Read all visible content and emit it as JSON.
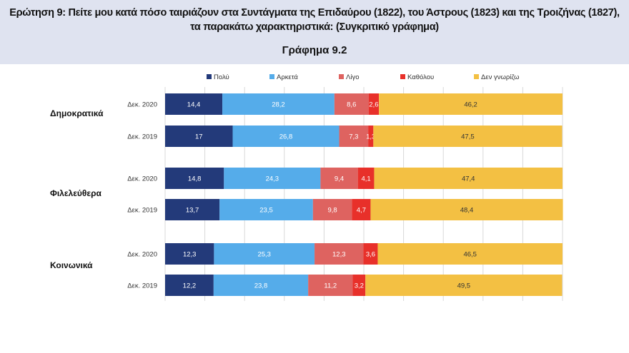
{
  "header": {
    "title": "Ερώτηση 9: Πείτε μου κατά πόσο ταιριάζουν στα Συντάγματα της Επιδαύρου (1822), του Άστρους (1823) και της Τροιζήνας (1827), τα παρακάτω χαρακτηριστικά: (Συγκριτικό γράφημα)",
    "subtitle": "Γράφημα 9.2"
  },
  "chart_data": {
    "type": "bar",
    "orientation": "horizontal",
    "stacked": true,
    "xlim": [
      0,
      100
    ],
    "grid": true,
    "legend_position": "top",
    "groups": [
      "Δημοκρατικά",
      "Φιλελεύθερα",
      "Κοινωνικά"
    ],
    "categories": [
      "Δεκ. 2020",
      "Δεκ. 2019"
    ],
    "series": [
      {
        "name": "Πολύ",
        "color": "#233a7a",
        "values": [
          [
            14.4,
            17
          ],
          [
            14.8,
            13.7
          ],
          [
            12.3,
            12.2
          ]
        ]
      },
      {
        "name": "Αρκετά",
        "color": "#55acea",
        "values": [
          [
            28.2,
            26.8
          ],
          [
            24.3,
            23.5
          ],
          [
            25.3,
            23.8
          ]
        ]
      },
      {
        "name": "Λίγο",
        "color": "#de6360",
        "values": [
          [
            8.6,
            7.3
          ],
          [
            9.4,
            9.8
          ],
          [
            12.3,
            11.2
          ]
        ]
      },
      {
        "name": "Καθόλου",
        "color": "#e8302a",
        "values": [
          [
            2.6,
            1.3
          ],
          [
            4.1,
            4.7
          ],
          [
            3.6,
            3.2
          ]
        ]
      },
      {
        "name": "Δεν γνωρίζω",
        "color": "#f3c043",
        "values": [
          [
            46.2,
            47.5
          ],
          [
            47.4,
            48.4
          ],
          [
            46.5,
            49.5
          ]
        ]
      }
    ]
  }
}
